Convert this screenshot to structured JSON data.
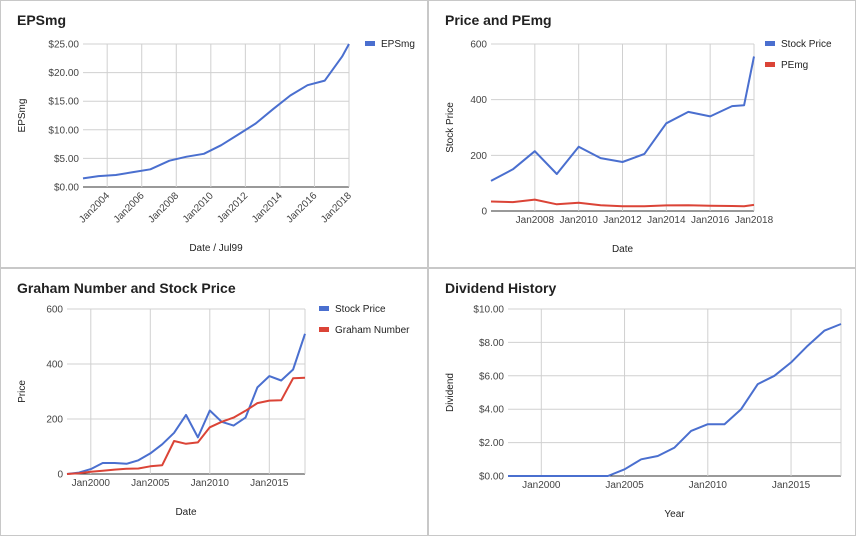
{
  "chart_data": [
    {
      "id": "p1",
      "type": "line",
      "title": "EPSmg",
      "xlabel": "Date / Jul99",
      "ylabel": "EPSmg",
      "y_prefix": "$",
      "y_decimals": 2,
      "xlim": [
        2002.6,
        2018.0
      ],
      "ylim": [
        0,
        25
      ],
      "yticks": [
        0,
        5,
        10,
        15,
        20,
        25
      ],
      "x_tick_rotate": -45,
      "xticks": [
        {
          "pos": 2004,
          "label": "Jan2004"
        },
        {
          "pos": 2006,
          "label": "Jan2006"
        },
        {
          "pos": 2008,
          "label": "Jan2008"
        },
        {
          "pos": 2010,
          "label": "Jan2010"
        },
        {
          "pos": 2012,
          "label": "Jan2012"
        },
        {
          "pos": 2014,
          "label": "Jan2014"
        },
        {
          "pos": 2016,
          "label": "Jan2016"
        },
        {
          "pos": 2018,
          "label": "Jan2018"
        }
      ],
      "legend_position": "top-right",
      "series": [
        {
          "name": "EPSmg",
          "color": "#4a6fcf",
          "points": [
            [
              2002.6,
              1.5
            ],
            [
              2003.5,
              1.9
            ],
            [
              2004.5,
              2.1
            ],
            [
              2005.5,
              2.6
            ],
            [
              2006.5,
              3.1
            ],
            [
              2007.6,
              4.6
            ],
            [
              2008.6,
              5.3
            ],
            [
              2009.6,
              5.8
            ],
            [
              2010.6,
              7.3
            ],
            [
              2011.6,
              9.2
            ],
            [
              2012.6,
              11.1
            ],
            [
              2013.6,
              13.6
            ],
            [
              2014.6,
              16.0
            ],
            [
              2015.6,
              17.8
            ],
            [
              2016.6,
              18.6
            ],
            [
              2017.6,
              22.8
            ],
            [
              2018.0,
              25.0
            ]
          ]
        }
      ]
    },
    {
      "id": "p2",
      "type": "line",
      "title": "Price and PEmg",
      "xlabel": "Date",
      "ylabel": "Stock Price",
      "y_prefix": "",
      "y_decimals": 0,
      "xlim": [
        2006.0,
        2018.0
      ],
      "ylim": [
        0,
        600
      ],
      "yticks": [
        0,
        200,
        400,
        600
      ],
      "x_tick_rotate": 0,
      "xticks": [
        {
          "pos": 2008,
          "label": "Jan2008"
        },
        {
          "pos": 2010,
          "label": "Jan2010"
        },
        {
          "pos": 2012,
          "label": "Jan2012"
        },
        {
          "pos": 2014,
          "label": "Jan2014"
        },
        {
          "pos": 2016,
          "label": "Jan2016"
        },
        {
          "pos": 2018,
          "label": "Jan2018"
        }
      ],
      "legend_position": "top-right",
      "series": [
        {
          "name": "Stock Price",
          "color": "#4a6fcf",
          "points": [
            [
              2006.0,
              108
            ],
            [
              2007.0,
              150
            ],
            [
              2008.0,
              215
            ],
            [
              2009.0,
              133
            ],
            [
              2010.0,
              231
            ],
            [
              2011.0,
              190
            ],
            [
              2012.0,
              176
            ],
            [
              2013.0,
              205
            ],
            [
              2014.0,
              315
            ],
            [
              2015.0,
              356
            ],
            [
              2016.0,
              340
            ],
            [
              2017.0,
              377
            ],
            [
              2017.55,
              380
            ],
            [
              2018.0,
              555
            ]
          ]
        },
        {
          "name": "PEmg",
          "color": "#db4437",
          "points": [
            [
              2006.0,
              34
            ],
            [
              2007.0,
              32
            ],
            [
              2008.0,
              41
            ],
            [
              2009.0,
              24
            ],
            [
              2010.0,
              30
            ],
            [
              2011.0,
              21
            ],
            [
              2012.0,
              17
            ],
            [
              2013.0,
              17
            ],
            [
              2014.0,
              20
            ],
            [
              2015.0,
              21
            ],
            [
              2016.0,
              19
            ],
            [
              2017.0,
              18
            ],
            [
              2017.55,
              17
            ],
            [
              2018.0,
              22
            ]
          ]
        }
      ]
    },
    {
      "id": "p3",
      "type": "line",
      "title": "Graham Number and Stock Price",
      "xlabel": "Date",
      "ylabel": "Price",
      "y_prefix": "",
      "y_decimals": 0,
      "xlim": [
        1998.0,
        2018.0
      ],
      "ylim": [
        0,
        600
      ],
      "yticks": [
        0,
        200,
        400,
        600
      ],
      "x_tick_rotate": 0,
      "xticks": [
        {
          "pos": 2000,
          "label": "Jan2000"
        },
        {
          "pos": 2005,
          "label": "Jan2005"
        },
        {
          "pos": 2010,
          "label": "Jan2010"
        },
        {
          "pos": 2015,
          "label": "Jan2015"
        }
      ],
      "legend_position": "top-right",
      "series": [
        {
          "name": "Stock Price",
          "color": "#4a6fcf",
          "points": [
            [
              1998.0,
              0
            ],
            [
              1999.0,
              5
            ],
            [
              2000.0,
              18
            ],
            [
              2001.0,
              40
            ],
            [
              2002.0,
              40
            ],
            [
              2003.0,
              37
            ],
            [
              2004.0,
              50
            ],
            [
              2005.0,
              75
            ],
            [
              2006.0,
              108
            ],
            [
              2007.0,
              150
            ],
            [
              2008.0,
              215
            ],
            [
              2009.0,
              133
            ],
            [
              2010.0,
              231
            ],
            [
              2011.0,
              190
            ],
            [
              2012.0,
              176
            ],
            [
              2013.0,
              205
            ],
            [
              2014.0,
              315
            ],
            [
              2015.0,
              356
            ],
            [
              2016.0,
              340
            ],
            [
              2017.0,
              380
            ],
            [
              2018.0,
              510
            ]
          ]
        },
        {
          "name": "Graham Number",
          "color": "#db4437",
          "points": [
            [
              1998.0,
              0
            ],
            [
              1999.0,
              3
            ],
            [
              2000.0,
              8
            ],
            [
              2001.0,
              12
            ],
            [
              2002.0,
              16
            ],
            [
              2003.0,
              19
            ],
            [
              2004.0,
              20
            ],
            [
              2005.0,
              28
            ],
            [
              2006.0,
              32
            ],
            [
              2007.0,
              120
            ],
            [
              2008.0,
              110
            ],
            [
              2009.0,
              115
            ],
            [
              2010.0,
              170
            ],
            [
              2011.0,
              190
            ],
            [
              2012.0,
              205
            ],
            [
              2013.0,
              230
            ],
            [
              2014.0,
              258
            ],
            [
              2015.0,
              267
            ],
            [
              2016.0,
              268
            ],
            [
              2017.0,
              348
            ],
            [
              2018.0,
              350
            ]
          ]
        }
      ]
    },
    {
      "id": "p4",
      "type": "line",
      "title": "Dividend History",
      "xlabel": "Year",
      "ylabel": "Dividend",
      "y_prefix": "$",
      "y_decimals": 2,
      "xlim": [
        1998.0,
        2018.0
      ],
      "ylim": [
        0,
        10
      ],
      "yticks": [
        0,
        2,
        4,
        6,
        8,
        10
      ],
      "x_tick_rotate": 0,
      "xticks": [
        {
          "pos": 2000,
          "label": "Jan2000"
        },
        {
          "pos": 2005,
          "label": "Jan2005"
        },
        {
          "pos": 2010,
          "label": "Jan2010"
        },
        {
          "pos": 2015,
          "label": "Jan2015"
        }
      ],
      "legend_position": "none",
      "series": [
        {
          "name": "",
          "color": "#4a6fcf",
          "points": [
            [
              1998.0,
              0
            ],
            [
              1999.0,
              0
            ],
            [
              2000.0,
              0
            ],
            [
              2001.0,
              0
            ],
            [
              2002.0,
              0
            ],
            [
              2003.0,
              0
            ],
            [
              2004.0,
              0
            ],
            [
              2005.0,
              0.4
            ],
            [
              2006.0,
              1.0
            ],
            [
              2007.0,
              1.2
            ],
            [
              2008.0,
              1.7
            ],
            [
              2009.0,
              2.7
            ],
            [
              2010.0,
              3.1
            ],
            [
              2011.0,
              3.1
            ],
            [
              2012.0,
              4.0
            ],
            [
              2013.0,
              5.5
            ],
            [
              2014.0,
              6.0
            ],
            [
              2015.0,
              6.8
            ],
            [
              2016.0,
              7.8
            ],
            [
              2017.0,
              8.7
            ],
            [
              2018.0,
              9.1
            ]
          ]
        }
      ]
    }
  ]
}
